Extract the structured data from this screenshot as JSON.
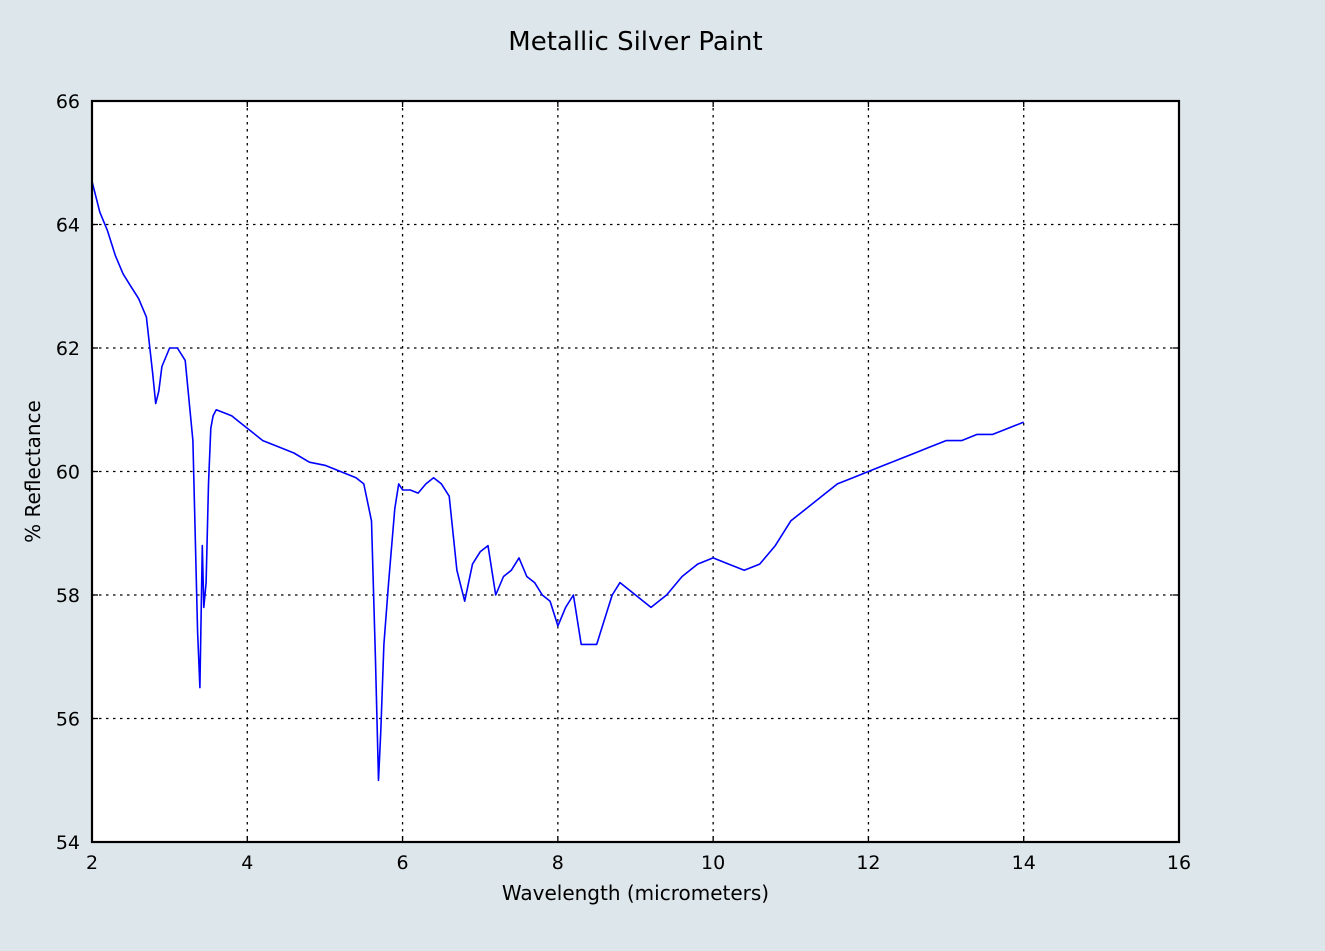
{
  "chart_data": {
    "type": "line",
    "title": "Metallic Silver Paint",
    "xlabel": "Wavelength (micrometers)",
    "ylabel": "% Reflectance",
    "xlim": [
      2,
      16
    ],
    "ylim": [
      54,
      66
    ],
    "xticks": [
      "2",
      "4",
      "6",
      "8",
      "10",
      "12",
      "14",
      "16"
    ],
    "yticks": [
      "54",
      "56",
      "58",
      "60",
      "62",
      "64",
      "66"
    ],
    "grid": true,
    "background_color": "#dde6eb",
    "plot_background": "#ffffff",
    "series": [
      {
        "color": "#0000ff",
        "x": [
          2.0,
          2.1,
          2.2,
          2.3,
          2.4,
          2.5,
          2.6,
          2.7,
          2.78,
          2.82,
          2.86,
          2.9,
          3.0,
          3.1,
          3.2,
          3.3,
          3.36,
          3.39,
          3.42,
          3.44,
          3.47,
          3.5,
          3.53,
          3.56,
          3.6,
          3.7,
          3.8,
          3.9,
          4.0,
          4.2,
          4.4,
          4.6,
          4.8,
          5.0,
          5.2,
          5.4,
          5.5,
          5.6,
          5.65,
          5.69,
          5.72,
          5.76,
          5.82,
          5.9,
          5.95,
          6.0,
          6.1,
          6.2,
          6.3,
          6.4,
          6.5,
          6.6,
          6.7,
          6.8,
          6.9,
          7.0,
          7.1,
          7.2,
          7.3,
          7.4,
          7.5,
          7.6,
          7.7,
          7.8,
          7.9,
          8.0,
          8.1,
          8.2,
          8.3,
          8.4,
          8.5,
          8.6,
          8.7,
          8.8,
          8.9,
          9.0,
          9.2,
          9.4,
          9.6,
          9.8,
          10.0,
          10.2,
          10.4,
          10.6,
          10.8,
          11.0,
          11.2,
          11.4,
          11.6,
          11.8,
          12.0,
          12.2,
          12.4,
          12.6,
          12.8,
          13.0,
          13.2,
          13.4,
          13.6,
          13.8,
          14.0
        ],
        "values": [
          64.7,
          64.2,
          63.9,
          63.5,
          63.2,
          63.0,
          62.8,
          62.5,
          61.6,
          61.1,
          61.3,
          61.7,
          62.0,
          62.0,
          61.8,
          60.5,
          57.4,
          56.5,
          58.8,
          57.8,
          58.2,
          59.8,
          60.7,
          60.9,
          61.0,
          60.95,
          60.9,
          60.8,
          60.7,
          60.5,
          60.4,
          60.3,
          60.15,
          60.1,
          60.0,
          59.9,
          59.8,
          59.2,
          57.0,
          55.0,
          55.8,
          57.2,
          58.2,
          59.4,
          59.8,
          59.7,
          59.7,
          59.65,
          59.8,
          59.9,
          59.8,
          59.6,
          58.4,
          57.9,
          58.5,
          58.7,
          58.8,
          58.0,
          58.3,
          58.4,
          58.6,
          58.3,
          58.2,
          58.0,
          57.9,
          57.5,
          57.8,
          58.0,
          57.2,
          57.2,
          57.2,
          57.6,
          58.0,
          58.2,
          58.1,
          58.0,
          57.8,
          58.0,
          58.3,
          58.5,
          58.6,
          58.5,
          58.4,
          58.5,
          58.8,
          59.2,
          59.4,
          59.6,
          59.8,
          59.9,
          60.0,
          60.1,
          60.2,
          60.3,
          60.4,
          60.5,
          60.5,
          60.6,
          60.6,
          60.7,
          60.8
        ]
      }
    ]
  }
}
